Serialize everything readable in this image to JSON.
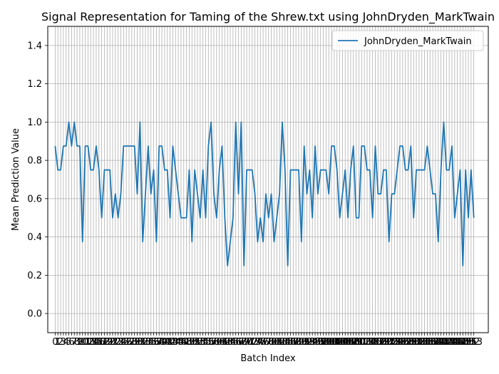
{
  "chart_data": {
    "type": "line",
    "title": "Signal Representation for Taming of the Shrew.txt using JohnDryden_MarkTwain",
    "xlabel": "Batch Index",
    "ylabel": "Mean Prediction Value",
    "ylim": [
      -0.1,
      1.5
    ],
    "yticks": [
      0.0,
      0.2,
      0.4,
      0.6,
      0.8,
      1.0,
      1.2,
      1.4
    ],
    "grid": true,
    "legend_position": "upper right",
    "series": [
      {
        "name": "JohnDryden_MarkTwain",
        "color": "#1f77b4",
        "x": [
          0,
          1,
          2,
          3,
          4,
          5,
          6,
          7,
          8,
          9,
          10,
          11,
          12,
          13,
          14,
          15,
          16,
          17,
          18,
          19,
          20,
          21,
          22,
          23,
          24,
          25,
          26,
          27,
          28,
          29,
          30,
          31,
          32,
          33,
          34,
          35,
          36,
          37,
          38,
          39,
          40,
          41,
          42,
          43,
          44,
          45,
          46,
          47,
          48,
          49,
          50,
          51,
          52,
          53,
          54,
          55,
          56,
          57,
          58,
          59,
          60,
          61,
          62,
          63,
          64,
          65,
          66,
          67,
          68,
          69,
          70,
          71,
          72,
          73,
          74,
          75,
          76,
          77,
          78,
          79,
          80,
          81,
          82,
          83,
          84,
          85,
          86,
          87,
          88,
          89,
          90,
          91,
          92,
          93,
          94,
          95,
          96,
          97,
          98,
          99,
          100,
          101,
          102,
          103,
          104,
          105,
          106,
          107,
          108,
          109,
          110,
          111,
          112,
          113,
          114,
          115,
          116,
          117,
          118,
          119,
          120,
          121,
          122,
          123,
          124,
          125,
          126,
          127,
          128,
          129,
          130,
          131,
          132,
          133,
          134,
          135,
          136,
          137,
          138,
          139,
          140,
          141,
          142,
          143,
          144,
          145,
          146,
          147,
          148,
          149,
          150,
          151,
          152,
          153
        ],
        "y": [
          0.875,
          0.75,
          0.75,
          0.875,
          0.875,
          1.0,
          0.875,
          1.0,
          0.875,
          0.875,
          0.375,
          0.875,
          0.875,
          0.75,
          0.75,
          0.875,
          0.75,
          0.5,
          0.75,
          0.75,
          0.75,
          0.5,
          0.625,
          0.5,
          0.625,
          0.875,
          0.875,
          0.875,
          0.875,
          0.875,
          0.625,
          1.0,
          0.375,
          0.625,
          0.875,
          0.625,
          0.75,
          0.375,
          0.875,
          0.875,
          0.75,
          0.75,
          0.5,
          0.875,
          0.75,
          0.625,
          0.5,
          0.5,
          0.5,
          0.75,
          0.375,
          0.75,
          0.625,
          0.5,
          0.75,
          0.5,
          0.875,
          1.0,
          0.625,
          0.5,
          0.75,
          0.875,
          0.5,
          0.25,
          0.375,
          0.5,
          1.0,
          0.625,
          1.0,
          0.25,
          0.75,
          0.75,
          0.75,
          0.625,
          0.375,
          0.5,
          0.375,
          0.625,
          0.5,
          0.625,
          0.375,
          0.5,
          0.625,
          1.0,
          0.75,
          0.25,
          0.75,
          0.75,
          0.75,
          0.75,
          0.375,
          0.875,
          0.625,
          0.75,
          0.5,
          0.875,
          0.625,
          0.75,
          0.75,
          0.75,
          0.625,
          0.875,
          0.875,
          0.75,
          0.5,
          0.625,
          0.75,
          0.5,
          0.75,
          0.875,
          0.5,
          0.5,
          0.875,
          0.875,
          0.75,
          0.75,
          0.5,
          0.875,
          0.625,
          0.625,
          0.75,
          0.75,
          0.375,
          0.625,
          0.625,
          0.75,
          0.875,
          0.875,
          0.75,
          0.75,
          0.875,
          0.5,
          0.75,
          0.75,
          0.75,
          0.75,
          0.875,
          0.75,
          0.625,
          0.625,
          0.375,
          0.75,
          1.0,
          0.75,
          0.75,
          0.875,
          0.5,
          0.625,
          0.75,
          0.25,
          0.75,
          0.5,
          0.75,
          0.5
        ]
      }
    ]
  }
}
